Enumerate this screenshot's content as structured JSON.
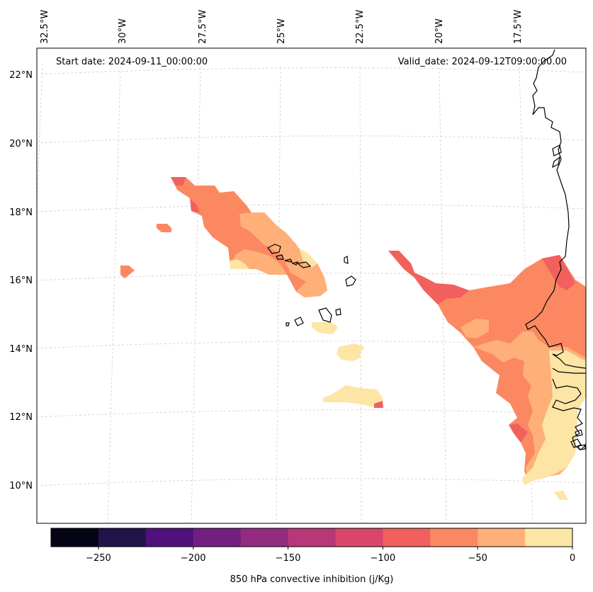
{
  "header": {
    "start_date": "Start date: 2024-09-11_00:00:00",
    "valid_date": "Valid_date: 2024-09-12T09:00:00.00"
  },
  "longitude_labels": [
    "32.5°W",
    "30°W",
    "27.5°W",
    "25°W",
    "22.5°W",
    "20°W",
    "17.5°W"
  ],
  "latitude_labels": [
    "22°N",
    "20°N",
    "18°N",
    "16°N",
    "14°N",
    "12°N",
    "10°N"
  ],
  "colorbar": {
    "title": "850 hPa convective inhibition (j/Kg)",
    "tick_labels": [
      "−250",
      "−200",
      "−150",
      "−100",
      "−50",
      "0"
    ],
    "range": [
      -275,
      0
    ],
    "bin_colors": [
      "#050416",
      "#211449",
      "#4f117b",
      "#721f81",
      "#932b80",
      "#b73779",
      "#d9466b",
      "#f1605d",
      "#fb8861",
      "#feb078",
      "#fde5a5"
    ]
  },
  "colors": {
    "coastline": "#000000",
    "gridline": "#cccccc"
  }
}
